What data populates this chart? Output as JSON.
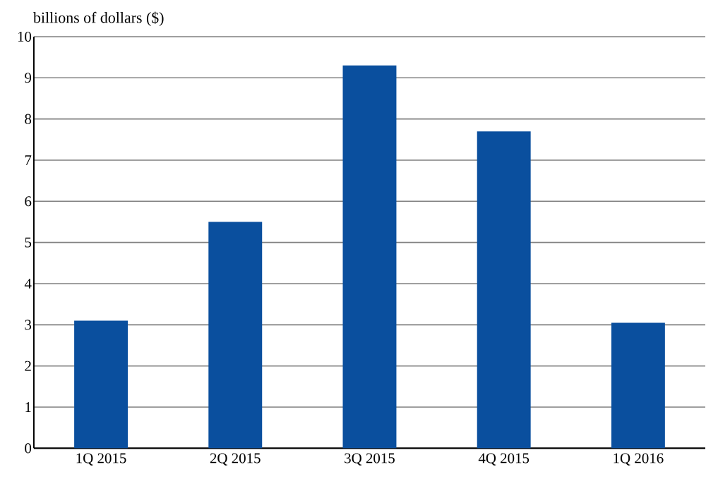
{
  "chart_data": {
    "type": "bar",
    "ylabel": "billions of dollars ($)",
    "categories": [
      "1Q 2015",
      "2Q 2015",
      "3Q 2015",
      "4Q 2015",
      "1Q 2016"
    ],
    "values": [
      3.1,
      5.5,
      9.3,
      7.7,
      3.05
    ],
    "color": "#0a4f9e",
    "ylim": [
      0,
      10
    ],
    "yticks": [
      0,
      1,
      2,
      3,
      4,
      5,
      6,
      7,
      8,
      9,
      10
    ],
    "grid": "y"
  }
}
